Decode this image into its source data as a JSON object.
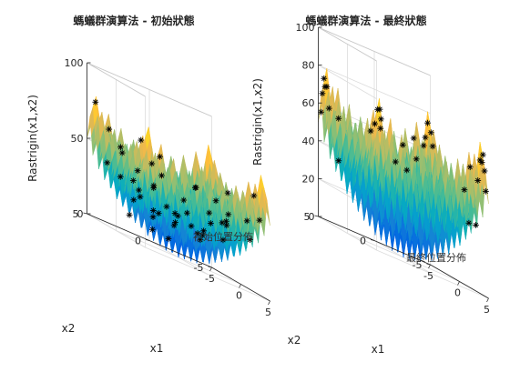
{
  "chart_data": [
    {
      "type": "surface",
      "title": "螞蟻群演算法 - 初始狀態",
      "xlabel": "x1",
      "ylabel": "x2",
      "zlabel": "Rastrigin(x1,x2)",
      "xlim": [
        -5,
        5
      ],
      "ylim": [
        -5,
        5
      ],
      "zlim": [
        0,
        100
      ],
      "xticks": [
        "-5",
        "0",
        "5"
      ],
      "yticks": [
        "-5",
        "0",
        "5"
      ],
      "zticks": [
        "0",
        "50",
        "100"
      ],
      "function": "rastrigin",
      "colormap": "parula",
      "grid": true,
      "legend": "初始位置分佈",
      "scatter_spread": "uniform",
      "points": [
        [
          -4.1,
          3.8
        ],
        [
          -3.2,
          2.1
        ],
        [
          -2.5,
          4.4
        ],
        [
          -1.8,
          1.2
        ],
        [
          -0.7,
          3.3
        ],
        [
          0.4,
          4.7
        ],
        [
          1.3,
          2.6
        ],
        [
          2.2,
          4.1
        ],
        [
          3.1,
          1.8
        ],
        [
          4.3,
          3.5
        ],
        [
          -4.6,
          -0.8
        ],
        [
          -3.5,
          0.5
        ],
        [
          -2.6,
          -1.9
        ],
        [
          -1.2,
          -0.3
        ],
        [
          0.2,
          0.9
        ],
        [
          1.1,
          -1.5
        ],
        [
          2.4,
          0.1
        ],
        [
          3.6,
          -0.9
        ],
        [
          4.5,
          0.7
        ],
        [
          -4.2,
          -3.3
        ],
        [
          -3.0,
          -4.4
        ],
        [
          -1.9,
          -2.8
        ],
        [
          -0.6,
          -4.1
        ],
        [
          0.8,
          -3.2
        ],
        [
          1.9,
          -4.6
        ],
        [
          2.9,
          -2.5
        ],
        [
          3.9,
          -3.9
        ],
        [
          4.7,
          -1.8
        ],
        [
          -2.0,
          3.0
        ],
        [
          -0.2,
          2.0
        ],
        [
          1.6,
          0.8
        ],
        [
          2.8,
          2.9
        ],
        [
          -3.8,
          1.5
        ],
        [
          -1.4,
          4.0
        ],
        [
          0.9,
          3.6
        ],
        [
          3.4,
          4.6
        ],
        [
          -4.8,
          2.4
        ],
        [
          -2.9,
          -0.4
        ],
        [
          -0.9,
          1.6
        ],
        [
          1.7,
          -2.7
        ],
        [
          3.3,
          -4.5
        ],
        [
          4.1,
          2.2
        ],
        [
          -1.6,
          -4.7
        ],
        [
          0.1,
          -1.7
        ],
        [
          2.0,
          -0.6
        ],
        [
          -3.6,
          -2.1
        ],
        [
          -0.3,
          -2.6
        ],
        [
          4.9,
          -4.2
        ],
        [
          -4.4,
          4.6
        ],
        [
          2.6,
          3.2
        ]
      ]
    },
    {
      "type": "surface",
      "title": "螞蟻群演算法 - 最終狀態",
      "xlabel": "x1",
      "ylabel": "x2",
      "zlabel": "Rastrigin(x1,x2)",
      "xlim": [
        -5,
        5
      ],
      "ylim": [
        -5,
        5
      ],
      "zlim": [
        0,
        100
      ],
      "xticks": [
        "-5",
        "0",
        "5"
      ],
      "yticks": [
        "-5",
        "0",
        "5"
      ],
      "zticks": [
        "0",
        "20",
        "40",
        "60",
        "80",
        "100"
      ],
      "function": "rastrigin",
      "colormap": "parula",
      "grid": true,
      "legend": "最終位置分佈",
      "scatter_spread": "clustered",
      "points": [
        [
          -4.6,
          4.7
        ],
        [
          -4.8,
          4.5
        ],
        [
          -4.5,
          4.9
        ],
        [
          -4.9,
          4.8
        ],
        [
          -4.3,
          4.6
        ],
        [
          -4.7,
          4.2
        ],
        [
          4.6,
          -4.7
        ],
        [
          4.8,
          -4.5
        ],
        [
          4.5,
          -4.9
        ],
        [
          4.9,
          -4.8
        ],
        [
          4.3,
          -4.6
        ],
        [
          4.7,
          -4.2
        ],
        [
          -4.7,
          -4.6
        ],
        [
          -4.5,
          -4.8
        ],
        [
          -4.9,
          -4.5
        ],
        [
          -4.4,
          -4.9
        ],
        [
          -4.8,
          -4.3
        ],
        [
          4.6,
          4.7
        ],
        [
          4.8,
          4.5
        ],
        [
          4.5,
          4.9
        ],
        [
          4.4,
          4.4
        ],
        [
          4.9,
          4.6
        ],
        [
          2.0,
          -4.8
        ],
        [
          2.6,
          -4.6
        ],
        [
          3.0,
          -4.9
        ],
        [
          1.8,
          -4.5
        ],
        [
          -4.8,
          -2.8
        ],
        [
          -4.6,
          -3.3
        ],
        [
          -4.9,
          -3.7
        ],
        [
          -2.3,
          4.6
        ],
        [
          -1.9,
          4.8
        ],
        [
          3.6,
          4.8
        ],
        [
          4.7,
          2.5
        ],
        [
          4.6,
          3.1
        ]
      ]
    }
  ]
}
